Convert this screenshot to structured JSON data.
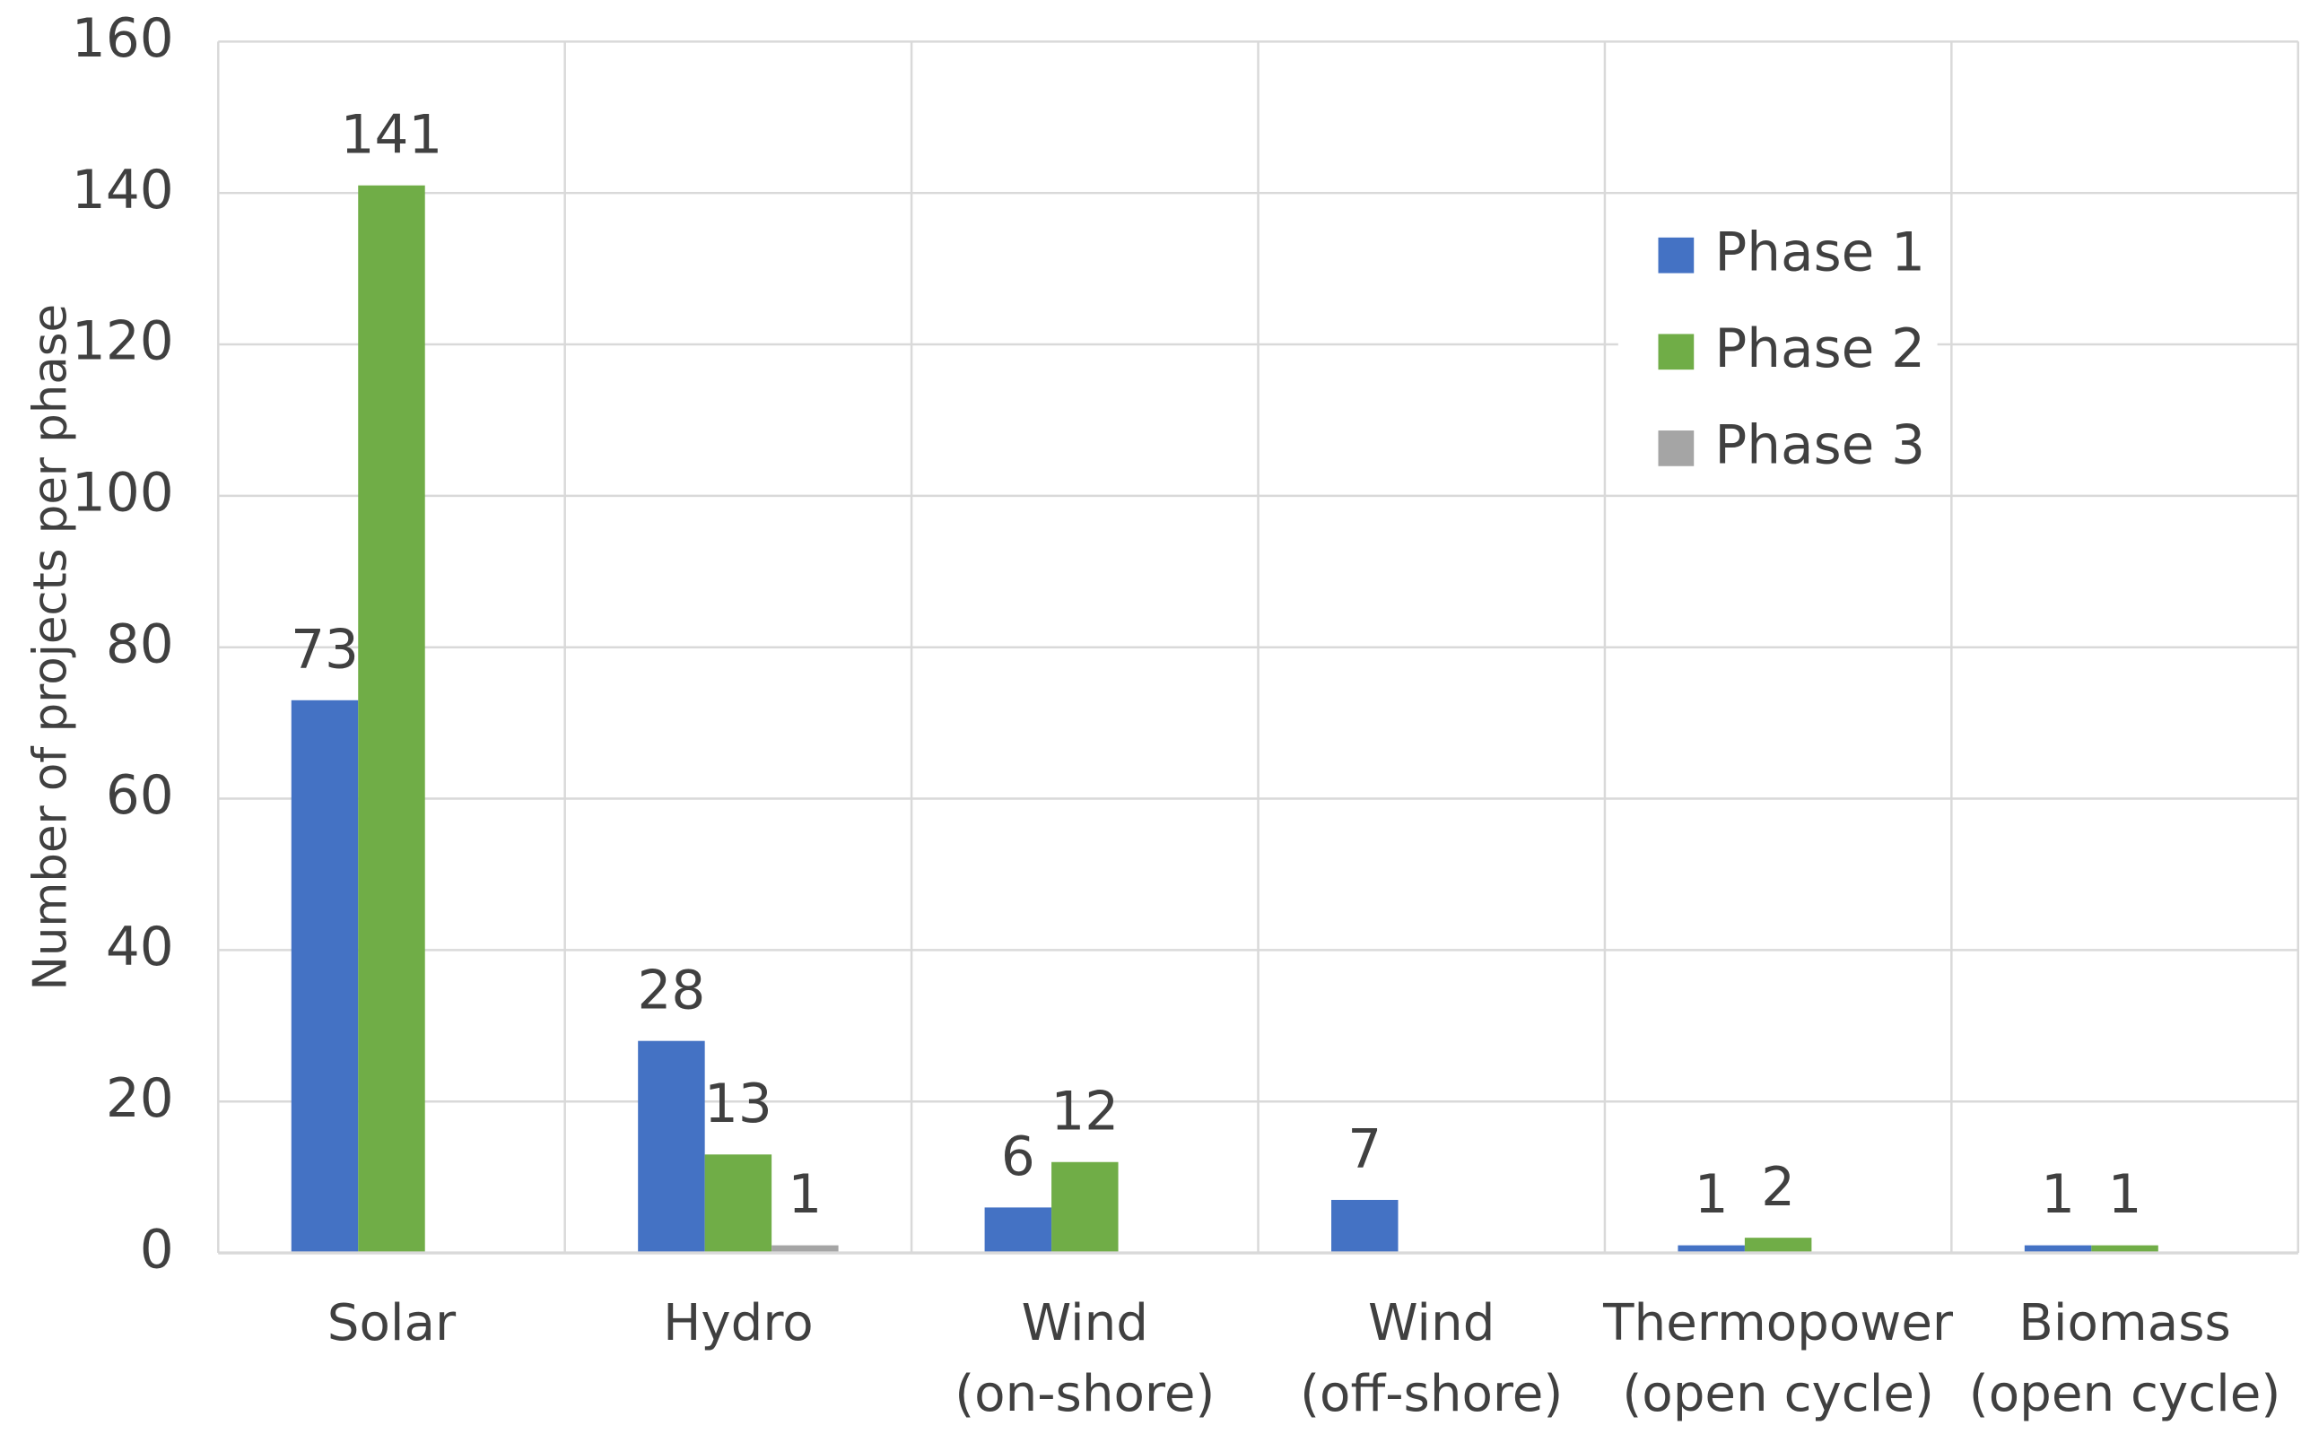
{
  "chart_data": {
    "type": "bar",
    "y_label": "Number of projects per phase",
    "categories": [
      [
        "Solar"
      ],
      [
        "Hydro"
      ],
      [
        "Wind",
        "(on-shore)"
      ],
      [
        "Wind",
        "(off-shore)"
      ],
      [
        "Thermopower",
        "(open cycle)"
      ],
      [
        "Biomass",
        "(open cycle)"
      ]
    ],
    "series": [
      {
        "name": "Phase 1",
        "color": "#4472c4",
        "values": [
          73,
          28,
          6,
          7,
          1,
          1
        ]
      },
      {
        "name": "Phase 2",
        "color": "#70ad47",
        "values": [
          141,
          13,
          12,
          null,
          2,
          1
        ]
      },
      {
        "name": "Phase 3",
        "color": "#a5a5a5",
        "values": [
          null,
          1,
          null,
          null,
          null,
          null
        ]
      }
    ],
    "ylim": [
      0,
      160
    ],
    "yticks": [
      0,
      20,
      40,
      60,
      80,
      100,
      120,
      140,
      160
    ],
    "grid": true,
    "legend": "upper right"
  }
}
